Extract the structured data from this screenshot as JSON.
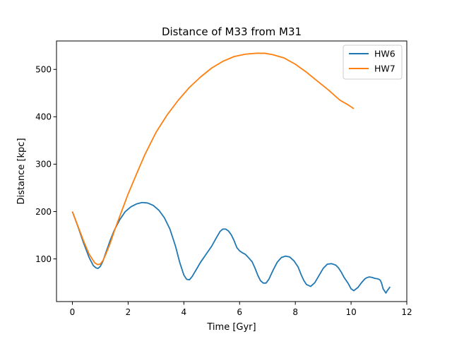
{
  "chart_data": {
    "type": "line",
    "title": "Distance of M33 from M31",
    "xlabel": "Time [Gyr]",
    "ylabel": "Distance [kpc]",
    "xlim": [
      -0.57,
      12.0
    ],
    "ylim": [
      10,
      560
    ],
    "xticks": [
      "0",
      "2",
      "4",
      "6",
      "8",
      "10",
      "12"
    ],
    "yticks": [
      "100",
      "200",
      "300",
      "400",
      "500"
    ],
    "grid": false,
    "legend_position": "top-right",
    "series": [
      {
        "name": "HW6",
        "color": "#1f77b4",
        "x": [
          0.0,
          0.2,
          0.4,
          0.6,
          0.75,
          0.85,
          0.92,
          1.0,
          1.1,
          1.2,
          1.35,
          1.5,
          1.7,
          1.9,
          2.1,
          2.3,
          2.5,
          2.7,
          2.9,
          3.1,
          3.3,
          3.5,
          3.7,
          3.85,
          4.0,
          4.1,
          4.2,
          4.3,
          4.45,
          4.6,
          4.8,
          5.0,
          5.15,
          5.3,
          5.4,
          5.5,
          5.6,
          5.7,
          5.8,
          5.9,
          6.0,
          6.1,
          6.2,
          6.3,
          6.45,
          6.55,
          6.65,
          6.75,
          6.85,
          6.95,
          7.05,
          7.2,
          7.35,
          7.5,
          7.65,
          7.8,
          7.95,
          8.1,
          8.2,
          8.3,
          8.4,
          8.55,
          8.7,
          8.85,
          9.0,
          9.15,
          9.3,
          9.45,
          9.55,
          9.65,
          9.75,
          9.9,
          10.0,
          10.1,
          10.25,
          10.35,
          10.45,
          10.5,
          10.55,
          10.65,
          10.75,
          10.85,
          10.95,
          11.0,
          11.05,
          11.1,
          11.15,
          11.25,
          11.3,
          11.4
        ],
        "y": [
          200,
          168,
          134,
          103,
          86,
          81,
          80,
          84,
          96,
          113,
          138,
          160,
          183,
          200,
          210,
          216,
          219,
          218,
          213,
          203,
          187,
          163,
          127,
          93,
          66,
          57,
          56,
          63,
          78,
          93,
          110,
          127,
          143,
          158,
          163,
          163,
          159,
          151,
          139,
          124,
          117,
          113,
          110,
          104,
          94,
          81,
          66,
          54,
          49,
          49,
          57,
          76,
          93,
          103,
          106,
          104,
          96,
          83,
          68,
          55,
          46,
          42,
          50,
          65,
          80,
          89,
          90,
          87,
          81,
          72,
          61,
          48,
          37,
          33,
          40,
          48,
          55,
          58,
          60,
          62,
          61,
          59,
          58,
          57,
          55,
          48,
          37,
          28,
          33,
          41
        ],
        "y_extra": []
      },
      {
        "name": "HW7",
        "color": "#ff7f0e",
        "x": [
          0.0,
          0.2,
          0.4,
          0.6,
          0.8,
          0.9,
          1.0,
          1.1,
          1.2,
          1.35,
          1.5,
          1.7,
          2.0,
          2.3,
          2.6,
          3.0,
          3.4,
          3.8,
          4.2,
          4.6,
          5.0,
          5.4,
          5.8,
          6.2,
          6.6,
          6.9,
          7.2,
          7.6,
          8.0,
          8.4,
          8.8,
          9.2,
          9.6,
          9.9,
          10.1
        ],
        "y": [
          200,
          169,
          138,
          110,
          92,
          88,
          89,
          97,
          110,
          132,
          158,
          190,
          237,
          279,
          320,
          367,
          404,
          435,
          462,
          484,
          503,
          517,
          527,
          532,
          534,
          534,
          531,
          524,
          511,
          494,
          475,
          456,
          435,
          425,
          417
        ]
      }
    ]
  }
}
